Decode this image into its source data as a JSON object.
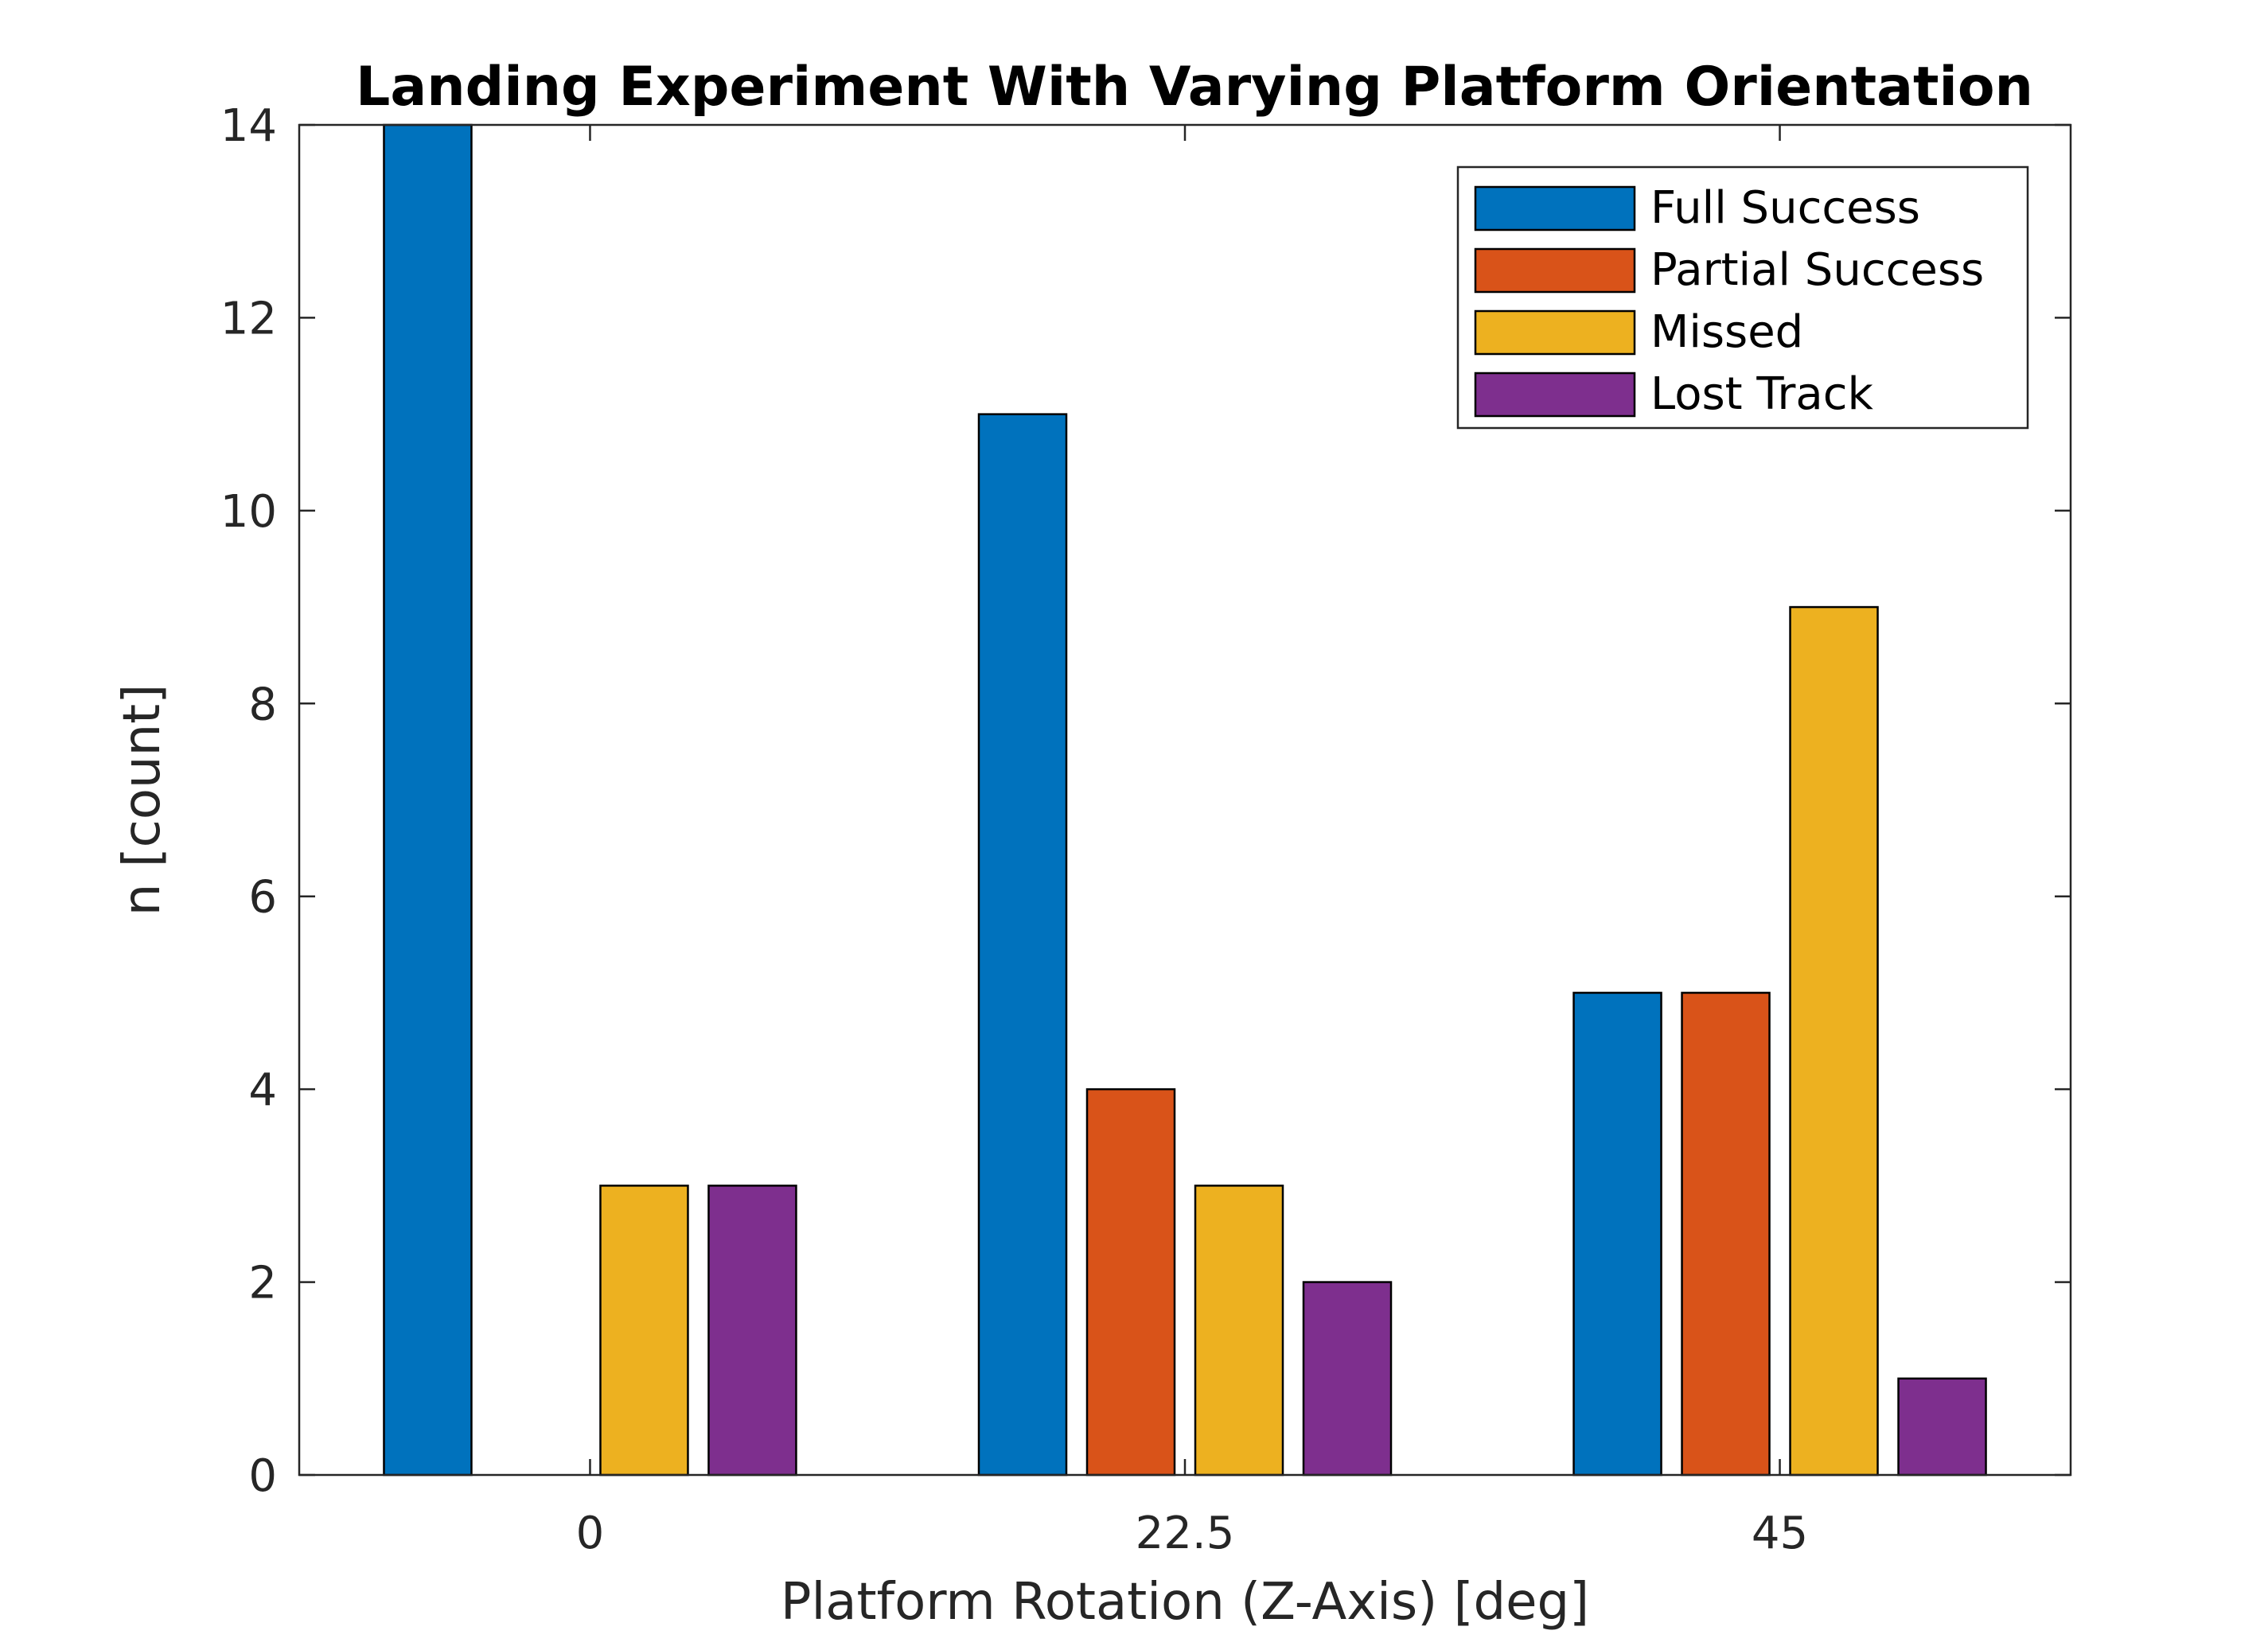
{
  "chart_data": {
    "type": "bar",
    "title": "Landing Experiment With Varying Platform Orientation",
    "xlabel": "Platform Rotation (Z-Axis) [deg]",
    "ylabel": "n [count]",
    "categories": [
      "0",
      "22.5",
      "45"
    ],
    "x_values": [
      0,
      22.5,
      45
    ],
    "xlim": [
      -11,
      56
    ],
    "ylim": [
      0,
      14
    ],
    "yticks": [
      0,
      2,
      4,
      6,
      8,
      10,
      12,
      14
    ],
    "series": [
      {
        "name": "Full Success",
        "color": "#0072BD",
        "values": [
          14,
          11,
          5
        ]
      },
      {
        "name": "Partial Success",
        "color": "#D95319",
        "values": [
          0,
          4,
          5
        ]
      },
      {
        "name": "Missed",
        "color": "#EDB120",
        "values": [
          3,
          3,
          9
        ]
      },
      {
        "name": "Lost Track",
        "color": "#7E2F8E",
        "values": [
          3,
          2,
          1
        ]
      }
    ],
    "legend_position": "top-right",
    "grid": false
  }
}
